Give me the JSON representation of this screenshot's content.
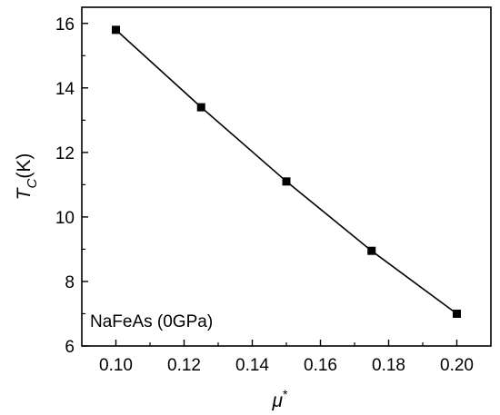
{
  "chart_data": {
    "type": "line",
    "x": [
      0.1,
      0.125,
      0.15,
      0.175,
      0.2
    ],
    "series": [
      {
        "values": [
          15.8,
          13.4,
          11.1,
          8.95,
          7.0
        ]
      }
    ],
    "xticks": [
      "0.10",
      "0.12",
      "0.14",
      "0.16",
      "0.18",
      "0.20"
    ],
    "yticks": [
      "6",
      "8",
      "10",
      "12",
      "14",
      "16"
    ],
    "xlim": [
      0.09,
      0.21
    ],
    "ylim": [
      6,
      16.5
    ],
    "xlabel": {
      "symbol": "μ",
      "sup": "*"
    },
    "ylabel": {
      "symbol": "T",
      "sub": "C",
      "suffix": "(K)"
    },
    "annotation": "NaFeAs (0GPa)",
    "grid": false,
    "marker": "square",
    "color": "#000000"
  }
}
